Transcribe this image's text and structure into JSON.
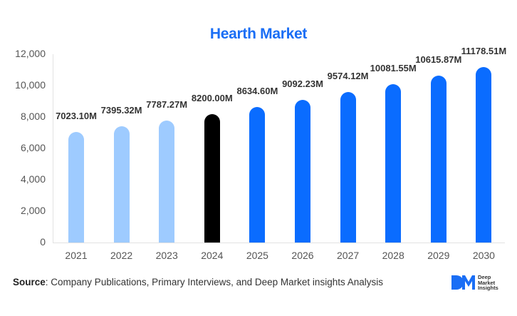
{
  "chart_data": {
    "type": "bar",
    "title": "Hearth Market",
    "xlabel": "",
    "ylabel": "",
    "ylim": [
      0,
      12000
    ],
    "yticks": [
      0,
      2000,
      4000,
      6000,
      8000,
      10000,
      12000
    ],
    "ytick_labels": [
      "0",
      "2,000",
      "4,000",
      "6,000",
      "8,000",
      "10,000",
      "12,000"
    ],
    "categories": [
      "2021",
      "2022",
      "2023",
      "2024",
      "2025",
      "2026",
      "2027",
      "2028",
      "2029",
      "2030"
    ],
    "values": [
      7023.1,
      7395.32,
      7787.27,
      8200.0,
      8634.6,
      9092.23,
      9574.12,
      10081.55,
      10615.87,
      11178.51
    ],
    "data_labels": [
      "7023.10M",
      "7395.32M",
      "7787.27M",
      "8200.00M",
      "8634.60M",
      "9092.23M",
      "9574.12M",
      "10081.55M",
      "10615.87M",
      "11178.51M"
    ],
    "bar_colors": [
      "#9ecbff",
      "#9ecbff",
      "#9ecbff",
      "#000000",
      "#0a6cff",
      "#0a6cff",
      "#0a6cff",
      "#0a6cff",
      "#0a6cff",
      "#0a6cff"
    ],
    "grid": false,
    "legend": null
  },
  "title": "Hearth Market",
  "footer": {
    "source_label": "Source",
    "source_text": ": Company Publications, Primary Interviews, and Deep Market insights Analysis"
  },
  "logo": {
    "mark": "DM",
    "lines": [
      "Deep",
      "Market",
      "Insights"
    ]
  },
  "colors": {
    "title": "#1a6ef5",
    "historical": "#9ecbff",
    "base_year": "#000000",
    "forecast": "#0a6cff"
  }
}
